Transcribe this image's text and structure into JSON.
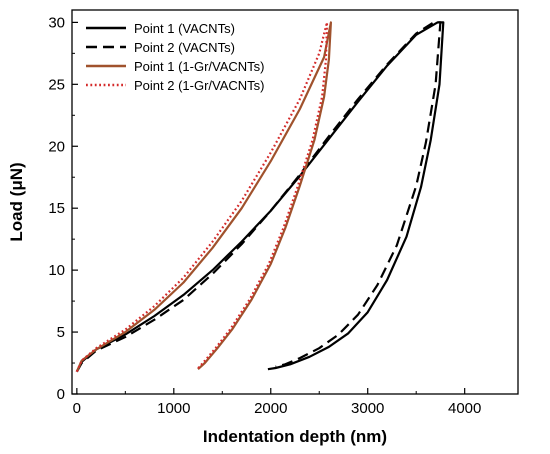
{
  "chart_data": {
    "type": "line",
    "title": "",
    "xlabel": "Indentation depth (nm)",
    "ylabel": "Load (μN)",
    "xlim": [
      -50,
      4550
    ],
    "ylim": [
      0,
      31
    ],
    "xticks": [
      0,
      1000,
      2000,
      3000,
      4000
    ],
    "yticks": [
      0,
      5,
      10,
      15,
      20,
      25,
      30
    ],
    "grid": false,
    "legend_position": "top-left",
    "series": [
      {
        "name": "Point 1 (VACNTs)",
        "color": "#000000",
        "dash": "solid",
        "x": [
          0,
          50,
          200,
          500,
          800,
          1100,
          1400,
          1700,
          2000,
          2300,
          2600,
          2900,
          3200,
          3500,
          3720,
          3780,
          3740,
          3650,
          3550,
          3400,
          3200,
          3000,
          2800,
          2600,
          2400,
          2200,
          2050,
          1970
        ],
        "y": [
          1.8,
          2.6,
          3.6,
          4.8,
          6.3,
          8.0,
          10.0,
          12.3,
          14.8,
          17.6,
          20.6,
          23.6,
          26.5,
          29.0,
          30.0,
          30.0,
          25.0,
          20.5,
          16.7,
          12.7,
          9.2,
          6.6,
          4.9,
          3.8,
          3.0,
          2.4,
          2.1,
          2.0
        ]
      },
      {
        "name": "Point 2 (VACNTs)",
        "color": "#000000",
        "dash": "dashed",
        "x": [
          0,
          50,
          200,
          500,
          800,
          1100,
          1400,
          1700,
          2000,
          2300,
          2600,
          2900,
          3200,
          3500,
          3680,
          3750,
          3700,
          3600,
          3500,
          3300,
          3100,
          2900,
          2700,
          2500,
          2300,
          2150,
          2050
        ],
        "y": [
          1.8,
          2.5,
          3.5,
          4.6,
          6.0,
          7.6,
          9.7,
          12.1,
          14.8,
          17.7,
          20.8,
          23.8,
          26.6,
          29.1,
          30.0,
          30.0,
          25.0,
          20.3,
          16.8,
          12.0,
          8.8,
          6.4,
          4.8,
          3.7,
          2.9,
          2.4,
          2.2
        ]
      },
      {
        "name": "Point 1 (1-Gr/VACNTs)",
        "color": "#a0522d",
        "dash": "solid",
        "x": [
          0,
          50,
          200,
          500,
          800,
          1100,
          1400,
          1700,
          2000,
          2300,
          2550,
          2620,
          2600,
          2550,
          2450,
          2300,
          2150,
          2000,
          1800,
          1600,
          1450,
          1320,
          1250
        ],
        "y": [
          1.8,
          2.7,
          3.6,
          5.0,
          6.8,
          9.0,
          11.8,
          15.0,
          18.8,
          23.0,
          27.2,
          30.0,
          27.0,
          24.0,
          20.5,
          16.8,
          13.4,
          10.5,
          7.6,
          5.2,
          3.7,
          2.5,
          2.0
        ]
      },
      {
        "name": "Point 2 (1-Gr/VACNTs)",
        "color": "#d42a2a",
        "dash": "dotted",
        "x": [
          0,
          50,
          200,
          500,
          800,
          1100,
          1400,
          1700,
          2000,
          2300,
          2500,
          2580,
          2570,
          2530,
          2430,
          2280,
          2130,
          1980,
          1780,
          1580,
          1430,
          1300,
          1240
        ],
        "y": [
          1.8,
          2.7,
          3.7,
          5.2,
          7.1,
          9.4,
          12.3,
          15.6,
          19.5,
          23.8,
          27.5,
          30.0,
          27.0,
          24.0,
          20.5,
          16.8,
          13.4,
          10.5,
          7.6,
          5.2,
          3.7,
          2.5,
          2.0
        ]
      }
    ]
  }
}
